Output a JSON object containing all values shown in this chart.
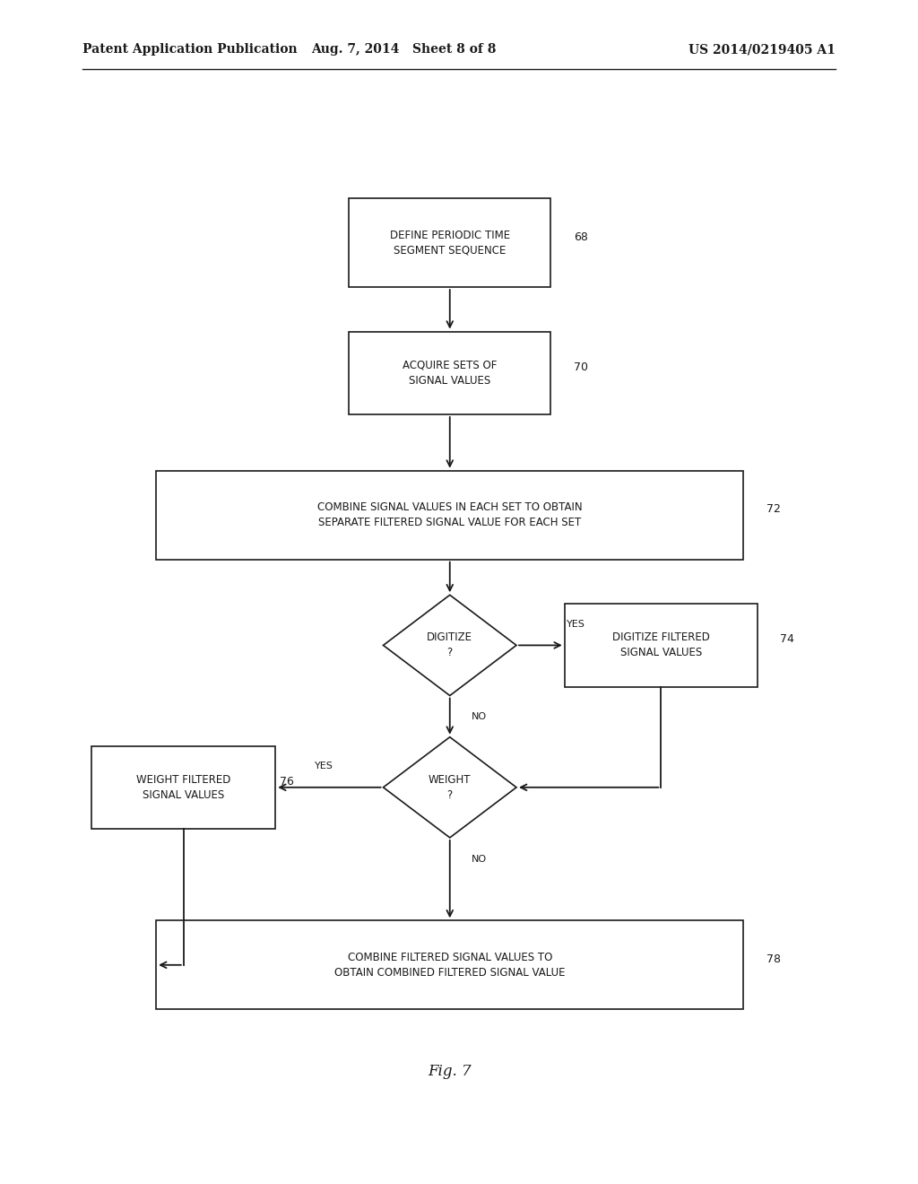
{
  "bg_color": "#ffffff",
  "header_left": "Patent Application Publication",
  "header_mid": "Aug. 7, 2014   Sheet 8 of 8",
  "header_right": "US 2014/0219405 A1",
  "fig_label": "Fig. 7",
  "text_color": "#1a1a1a",
  "box_edge_color": "#1a1a1a",
  "arrow_color": "#1a1a1a",
  "font_size_box": 8.5,
  "font_size_header": 10,
  "font_size_fig": 12,
  "font_size_tag": 9
}
